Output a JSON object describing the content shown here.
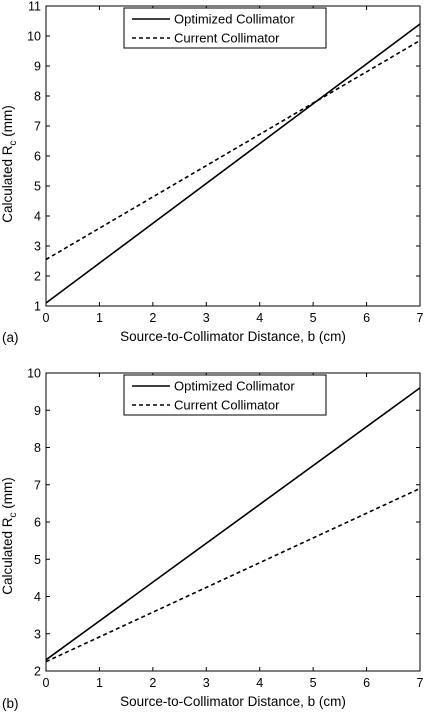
{
  "chart_data": [
    {
      "type": "line",
      "panel_label": "(a)",
      "xlabel": "Source-to-Collimator Distance, b (cm)",
      "ylabel": "Calculated R",
      "ylabel_subscript": "c",
      "ylabel_unit": " (mm)",
      "xlim": [
        0,
        7
      ],
      "ylim": [
        1,
        11
      ],
      "xticks": [
        0,
        1,
        2,
        3,
        4,
        5,
        6,
        7
      ],
      "yticks": [
        1,
        2,
        3,
        4,
        5,
        6,
        7,
        8,
        9,
        10,
        11
      ],
      "grid": false,
      "legend_position": "top",
      "series": [
        {
          "name": "Optimized Collimator",
          "style": "solid",
          "color": "#000000",
          "x": [
            0,
            7
          ],
          "y": [
            1.1,
            10.4
          ]
        },
        {
          "name": "Current Collimator",
          "style": "dashed",
          "color": "#000000",
          "x": [
            0,
            7
          ],
          "y": [
            2.55,
            9.85
          ]
        }
      ]
    },
    {
      "type": "line",
      "panel_label": "(b)",
      "xlabel": "Source-to-Collimator Distance, b (cm)",
      "ylabel": "Calculated R",
      "ylabel_subscript": "c",
      "ylabel_unit": " (mm)",
      "xlim": [
        0,
        7
      ],
      "ylim": [
        2,
        10
      ],
      "xticks": [
        0,
        1,
        2,
        3,
        4,
        5,
        6,
        7
      ],
      "yticks": [
        2,
        3,
        4,
        5,
        6,
        7,
        8,
        9,
        10
      ],
      "grid": false,
      "legend_position": "top",
      "series": [
        {
          "name": "Optimized Collimator",
          "style": "solid",
          "color": "#000000",
          "x": [
            0,
            7
          ],
          "y": [
            2.3,
            9.6
          ]
        },
        {
          "name": "Current Collimator",
          "style": "dashed",
          "color": "#000000",
          "x": [
            0,
            7
          ],
          "y": [
            2.25,
            6.9
          ]
        }
      ]
    }
  ]
}
